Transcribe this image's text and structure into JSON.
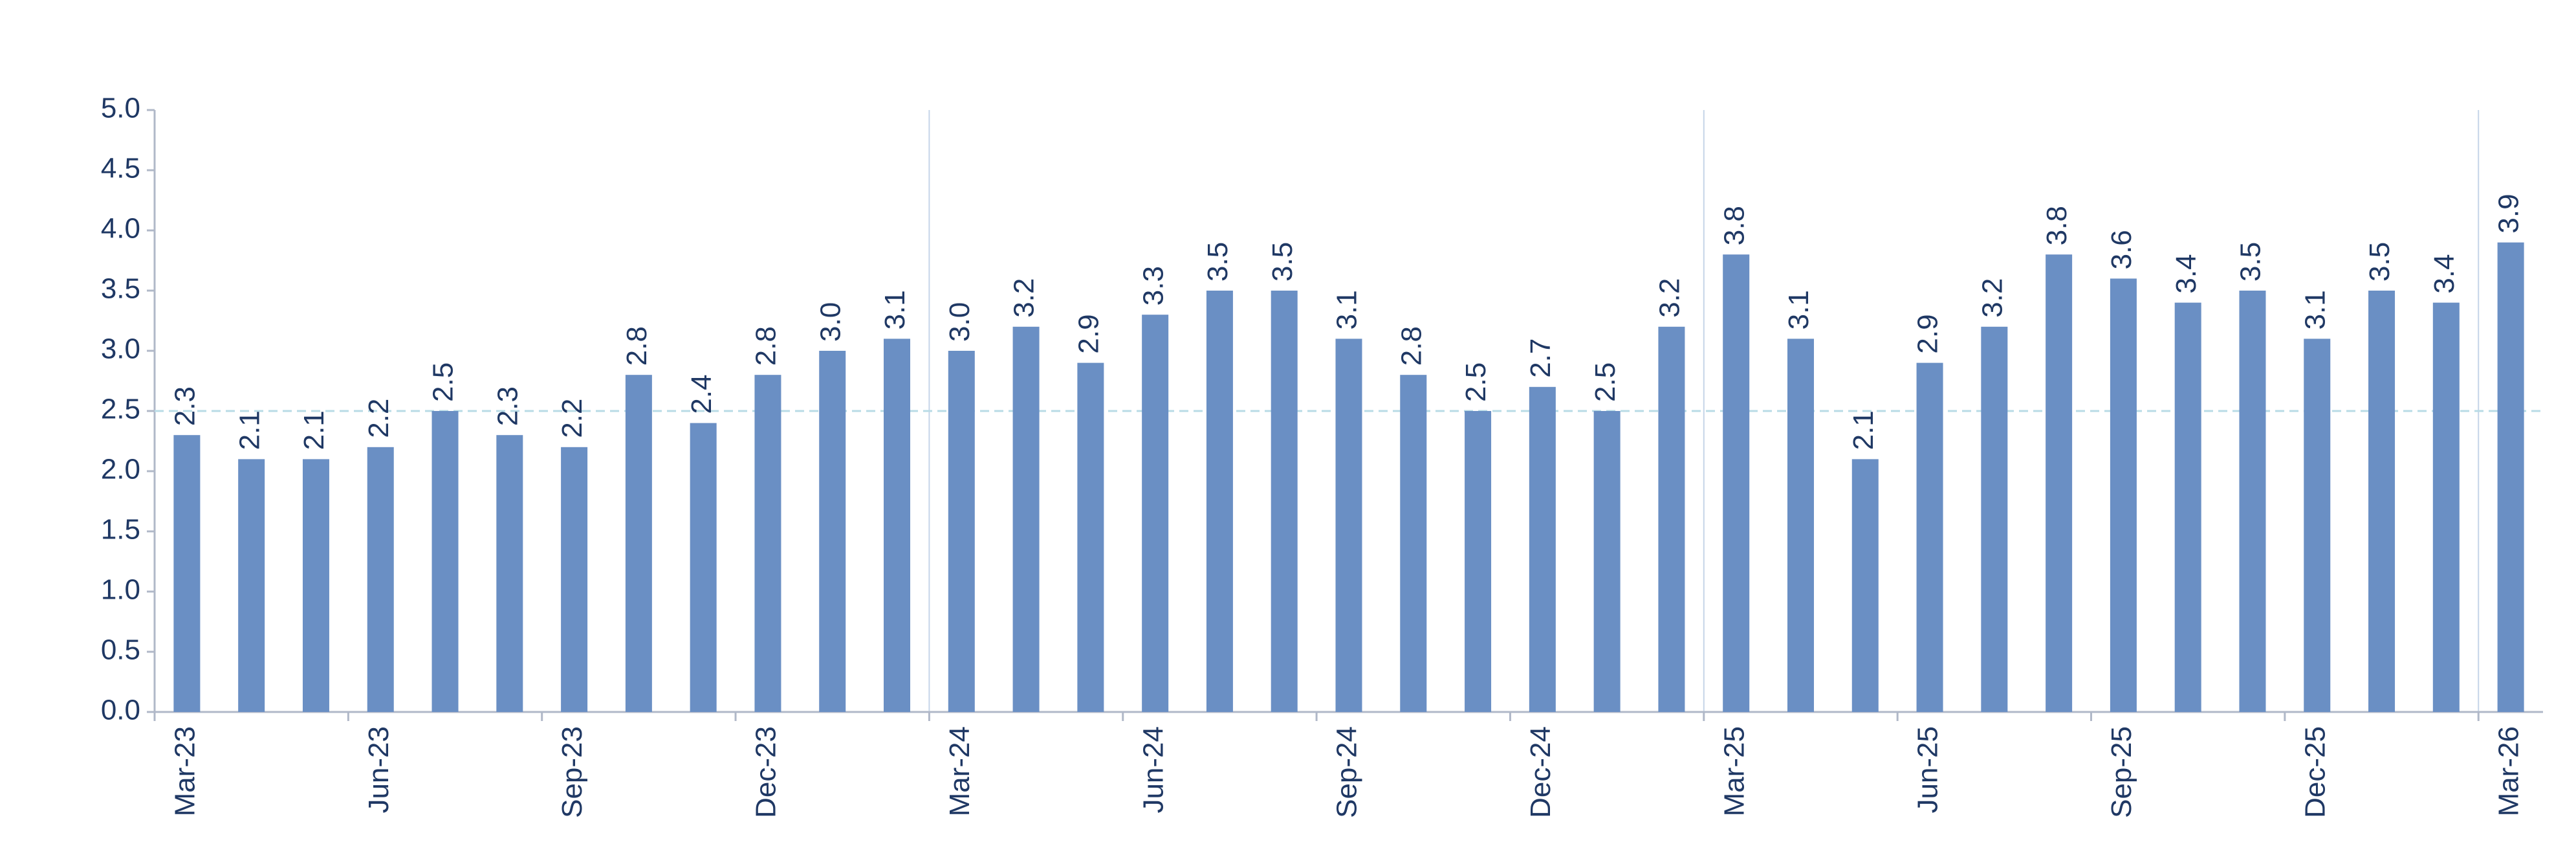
{
  "chart_data": {
    "type": "bar",
    "categories": [
      "Mar-23",
      null,
      null,
      "Jun-23",
      null,
      null,
      "Sep-23",
      null,
      null,
      "Dec-23",
      null,
      null,
      "Mar-24",
      null,
      null,
      "Jun-24",
      null,
      null,
      "Sep-24",
      null,
      null,
      "Dec-24",
      null,
      null,
      "Mar-25",
      null,
      null,
      "Jun-25",
      null,
      null,
      "Sep-25",
      null,
      null,
      "Dec-25",
      null,
      null,
      "Mar-26"
    ],
    "values": [
      2.3,
      2.1,
      2.1,
      2.2,
      2.5,
      2.3,
      2.2,
      2.8,
      2.4,
      2.8,
      3.0,
      3.1,
      3.0,
      3.2,
      2.9,
      3.3,
      3.5,
      3.5,
      3.1,
      2.8,
      2.5,
      2.7,
      2.5,
      3.2,
      3.8,
      3.1,
      2.1,
      2.9,
      3.2,
      3.8,
      3.6,
      3.4,
      3.5,
      3.1,
      3.5,
      3.4,
      3.9
    ],
    "value_labels": [
      "2.3",
      "2.1",
      "2.1",
      "2.2",
      "2.5",
      "2.3",
      "2.2",
      "2.8",
      "2.4",
      "2.8",
      "3.0",
      "3.1",
      "3.0",
      "3.2",
      "2.9",
      "3.3",
      "3.5",
      "3.5",
      "3.1",
      "2.8",
      "2.5",
      "2.7",
      "2.5",
      "3.2",
      "3.8",
      "3.1",
      "2.1",
      "2.9",
      "3.2",
      "3.8",
      "3.6",
      "3.4",
      "3.5",
      "3.1",
      "3.5",
      "3.4",
      "3.9"
    ],
    "color": "#6a8fc4",
    "ylim": [
      0,
      5
    ],
    "yticks": [
      {
        "value": 0,
        "label": "0.0"
      },
      {
        "value": 0.5,
        "label": "0.5"
      },
      {
        "value": 1,
        "label": "1.0"
      },
      {
        "value": 1.5,
        "label": "1.5"
      },
      {
        "value": 2,
        "label": "2.0"
      },
      {
        "value": 2.5,
        "label": "2.5"
      },
      {
        "value": 3,
        "label": "3.0"
      },
      {
        "value": 3.5,
        "label": "3.5"
      },
      {
        "value": 4,
        "label": "4.0"
      },
      {
        "value": 4.5,
        "label": "4.5"
      },
      {
        "value": 5,
        "label": "5.0"
      }
    ],
    "reference_line": 2.5,
    "grid": false
  }
}
